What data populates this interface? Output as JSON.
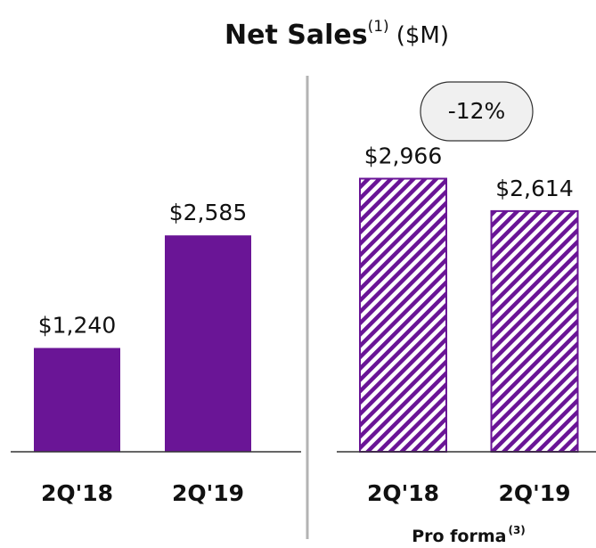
{
  "title": {
    "text": "Net Sales",
    "footnote": "(1)",
    "unit": "($M)"
  },
  "chart_data": [
    {
      "type": "bar",
      "categories": [
        "2Q'18",
        "2Q'19"
      ],
      "values": [
        1240,
        2585
      ],
      "value_labels": [
        "$1,240",
        "$2,585"
      ],
      "color": "#6a1596",
      "ylim": [
        0,
        3300
      ]
    },
    {
      "type": "bar",
      "hatched": true,
      "categories": [
        "2Q'18",
        "2Q'19"
      ],
      "values": [
        2966,
        2614
      ],
      "value_labels": [
        "$2,966",
        "$2,614"
      ],
      "color": "#6a1596",
      "ylim": [
        0,
        3000
      ],
      "annotation": "-12%",
      "subtitle": "Pro forma",
      "subtitle_footnote": "(3)"
    }
  ]
}
